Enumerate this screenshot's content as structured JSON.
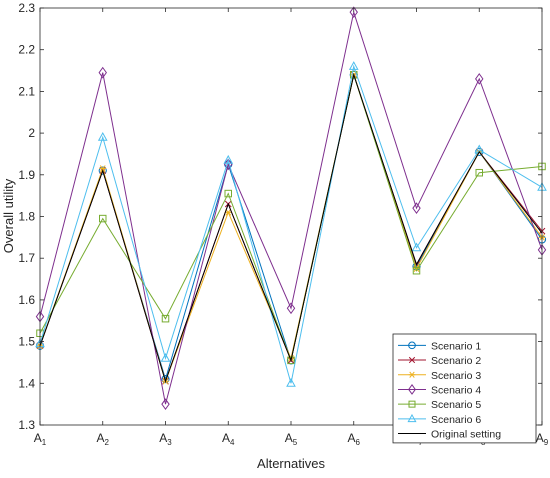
{
  "chart_data": {
    "type": "line",
    "xlabel": "Alternatives",
    "ylabel": "Overall utility",
    "ylim": [
      1.3,
      2.3
    ],
    "yticks": [
      "1.3",
      "1.4",
      "1.5",
      "1.6",
      "1.7",
      "1.8",
      "1.9",
      "2",
      "2.1",
      "2.2",
      "2.3"
    ],
    "categories": [
      {
        "base": "A",
        "sub": "1"
      },
      {
        "base": "A",
        "sub": "2"
      },
      {
        "base": "A",
        "sub": "3"
      },
      {
        "base": "A",
        "sub": "4"
      },
      {
        "base": "A",
        "sub": "5"
      },
      {
        "base": "A",
        "sub": "6"
      },
      {
        "base": "A",
        "sub": "7"
      },
      {
        "base": "A",
        "sub": "8"
      },
      {
        "base": "A",
        "sub": "9"
      }
    ],
    "grid": false,
    "legend_position": "bottom-right",
    "series": [
      {
        "name": "Scenario 1",
        "color": "#0072BD",
        "marker": "circle",
        "values": [
          1.49,
          1.91,
          1.41,
          1.925,
          1.455,
          2.14,
          1.68,
          1.955,
          1.745
        ]
      },
      {
        "name": "Scenario 2",
        "color": "#A2142F",
        "marker": "x",
        "values": [
          1.49,
          1.91,
          1.405,
          1.83,
          1.455,
          2.14,
          1.685,
          1.955,
          1.765
        ]
      },
      {
        "name": "Scenario 3",
        "color": "#EDB120",
        "marker": "asterisk",
        "values": [
          1.49,
          1.915,
          1.405,
          1.81,
          1.46,
          2.14,
          1.675,
          1.955,
          1.75
        ]
      },
      {
        "name": "Scenario 4",
        "color": "#7E2F8E",
        "marker": "diamond",
        "values": [
          1.56,
          2.145,
          1.35,
          1.925,
          1.58,
          2.29,
          1.82,
          2.13,
          1.72
        ]
      },
      {
        "name": "Scenario 5",
        "color": "#77AC30",
        "marker": "square",
        "values": [
          1.52,
          1.795,
          1.555,
          1.855,
          1.455,
          2.14,
          1.67,
          1.905,
          1.92
        ]
      },
      {
        "name": "Scenario 6",
        "color": "#4DBEEE",
        "marker": "triangle",
        "values": [
          1.495,
          1.99,
          1.46,
          1.935,
          1.4,
          2.16,
          1.725,
          1.96,
          1.87
        ]
      },
      {
        "name": "Original setting",
        "color": "#000000",
        "marker": "none",
        "values": [
          1.49,
          1.91,
          1.405,
          1.83,
          1.455,
          2.14,
          1.685,
          1.955,
          1.76
        ]
      }
    ]
  }
}
